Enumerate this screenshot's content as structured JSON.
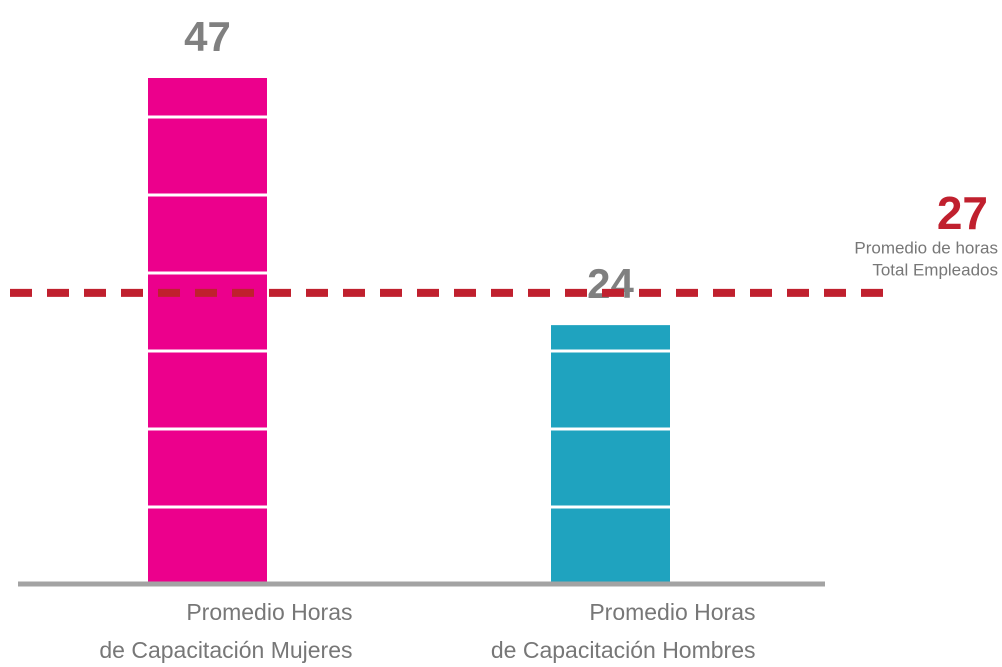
{
  "chart_data": {
    "type": "bar",
    "categories": [
      [
        "Promedio Horas",
        "de Capacitación Mujeres"
      ],
      [
        "Promedio Horas",
        "de Capacitación Hombres"
      ]
    ],
    "values": [
      47,
      24
    ],
    "colors": [
      "#ec008c",
      "#1fa3bf"
    ],
    "ylim": [
      0,
      47
    ],
    "reference_line": {
      "value": 27,
      "label": [
        "Promedio de horas",
        "Total Empleados"
      ],
      "color": "#c0202e"
    }
  }
}
